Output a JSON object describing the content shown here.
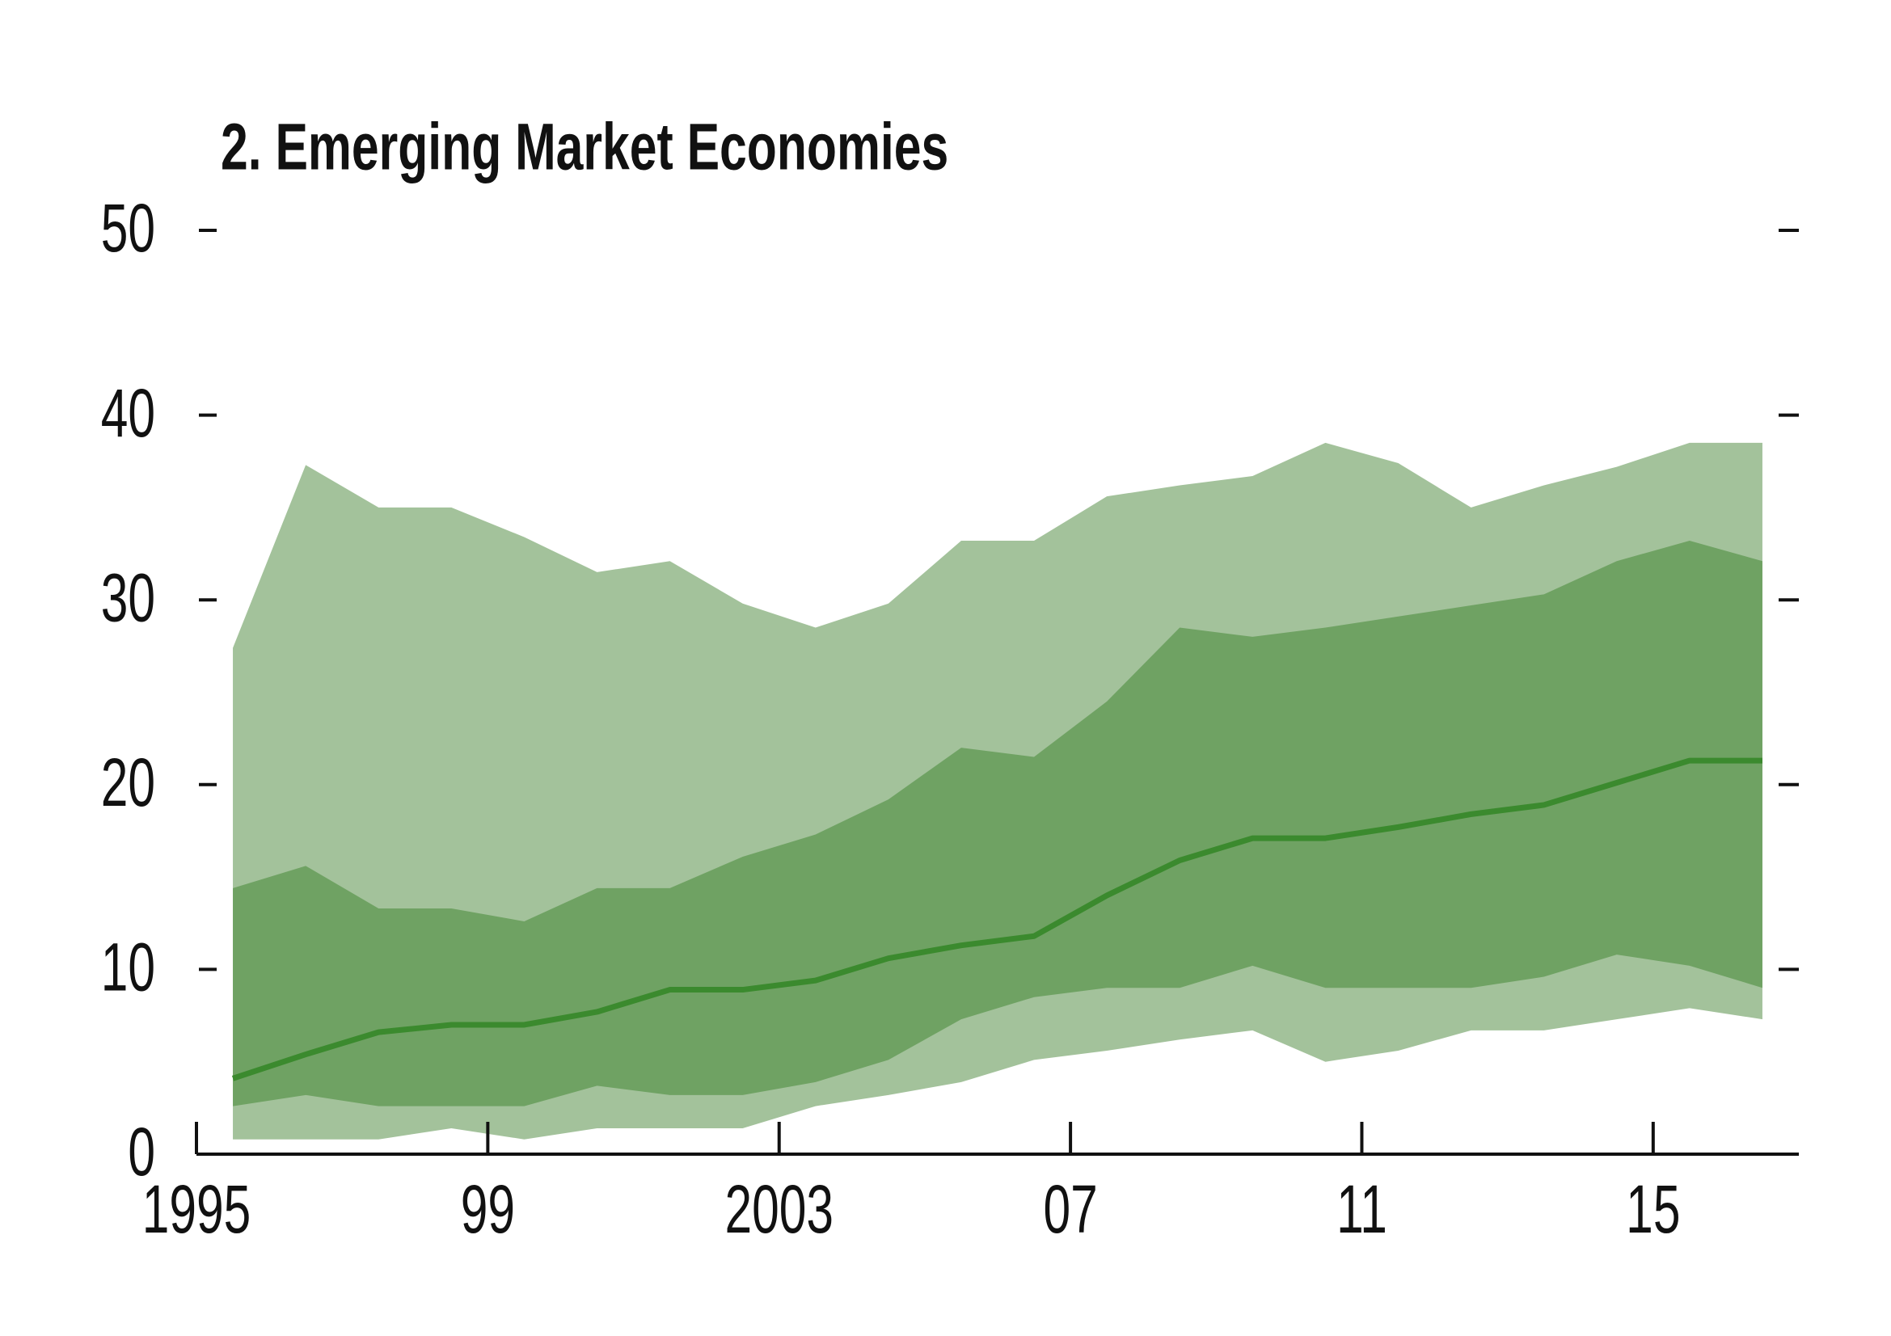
{
  "chart_data": {
    "type": "fan",
    "title": "2. Emerging Market Economies",
    "xlim": [
      1995,
      2017
    ],
    "xticks": [
      1995,
      {
        "value": 1999,
        "label": "99"
      },
      2003,
      {
        "value": 2007,
        "label": "07"
      },
      {
        "value": 2011,
        "label": "11"
      },
      {
        "value": 2015,
        "label": "15"
      }
    ],
    "ylim": [
      0,
      50
    ],
    "yticks": [
      0,
      10,
      20,
      30,
      40,
      50
    ],
    "x": [
      1995.5,
      1996.5,
      1997.5,
      1998.5,
      1999.5,
      2000.5,
      2001.5,
      2002.5,
      2003.5,
      2004.5,
      2005.5,
      2006.5,
      2007.5,
      2008.5,
      2009.5,
      2010.5,
      2011.5,
      2012.5,
      2013.5,
      2014.5,
      2015.5,
      2016.5
    ],
    "bands": [
      {
        "color": "#a3c29b",
        "upper": [
          27.4,
          37.3,
          35,
          35,
          33.4,
          31.5,
          32.1,
          29.8,
          28.5,
          29.8,
          33.2,
          33.2,
          35.6,
          36.2,
          36.7,
          38.5,
          37.4,
          35,
          36.2,
          37.2,
          38.5,
          38.5
        ],
        "lower": [
          0.8,
          0.8,
          0.8,
          1.4,
          0.8,
          1.4,
          1.4,
          1.4,
          2.6,
          3.2,
          3.9,
          5.1,
          5.6,
          6.2,
          6.7,
          5,
          5.6,
          6.7,
          6.7,
          7.3,
          7.9,
          7.3
        ]
      },
      {
        "color": "#6fa263",
        "upper": [
          14.4,
          15.6,
          13.3,
          13.3,
          12.6,
          14.4,
          14.4,
          16.1,
          17.3,
          19.2,
          22,
          21.5,
          24.5,
          28.5,
          28,
          28.5,
          29.1,
          29.7,
          30.3,
          32.1,
          33.2,
          32.1
        ],
        "lower": [
          2.6,
          3.2,
          2.6,
          2.6,
          2.6,
          3.7,
          3.2,
          3.2,
          3.9,
          5.1,
          7.3,
          8.5,
          9,
          9,
          10.2,
          9,
          9,
          9,
          9.6,
          10.8,
          10.2,
          9
        ]
      }
    ],
    "series": [
      {
        "color": "#3b8a2e",
        "values": [
          4.1,
          5.4,
          6.6,
          7,
          7,
          7.7,
          8.9,
          8.9,
          9.4,
          10.6,
          11.3,
          11.8,
          14,
          15.9,
          17.1,
          17.1,
          17.7,
          18.4,
          18.9,
          20.1,
          21.3,
          21.3
        ]
      }
    ],
    "right_ticks": true
  }
}
